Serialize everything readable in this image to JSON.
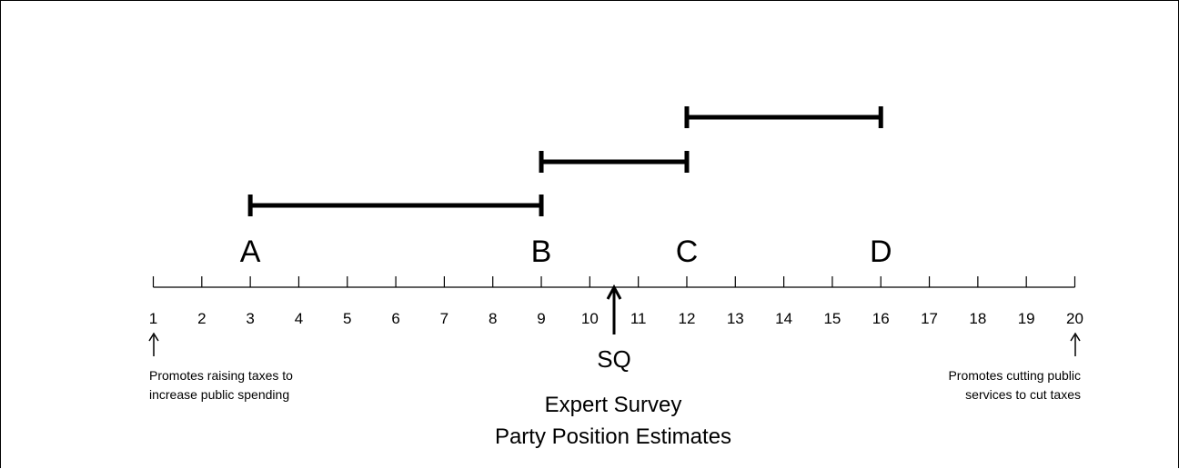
{
  "scale": {
    "min": 1,
    "max": 20,
    "tick_labels": [
      "1",
      "2",
      "3",
      "4",
      "5",
      "6",
      "7",
      "8",
      "9",
      "10",
      "11",
      "12",
      "13",
      "14",
      "15",
      "16",
      "17",
      "18",
      "19",
      "20"
    ]
  },
  "parties": [
    {
      "label": "A",
      "position": 3,
      "range": [
        3,
        9
      ]
    },
    {
      "label": "B",
      "position": 9,
      "range": [
        9,
        12
      ]
    },
    {
      "label": "C",
      "position": 12,
      "range": [
        12,
        16
      ]
    },
    {
      "label": "D",
      "position": 16,
      "range": null
    }
  ],
  "status_quo": {
    "label": "SQ",
    "position": 10.5
  },
  "left_note": [
    "Promotes raising taxes to",
    "increase public spending"
  ],
  "right_note": [
    "Promotes cutting public",
    "services to cut taxes"
  ],
  "caption": [
    "Expert Survey",
    "Party Position Estimates"
  ]
}
